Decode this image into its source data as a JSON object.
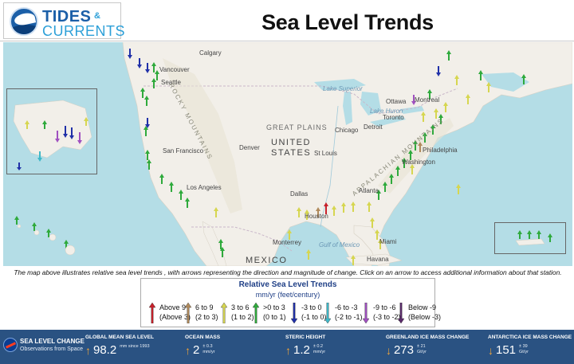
{
  "header": {
    "brand_line1": "TIDES",
    "brand_amp": "&",
    "brand_line2": "CURRENTS",
    "seal_text": "NOAA",
    "title": "Sea Level Trends"
  },
  "map": {
    "labels": {
      "calgary": "Calgary",
      "vancouver": "Vancouver",
      "seattle": "Seattle",
      "san_francisco": "San Francisco",
      "los_angeles": "Los Angeles",
      "denver": "Denver",
      "dallas": "Dallas",
      "houston": "Houston",
      "monterrey": "Monterrey",
      "st_louis": "St Louis",
      "chicago": "Chicago",
      "detroit": "Detroit",
      "toronto": "Toronto",
      "ottawa": "Ottawa",
      "montreal": "Montreal",
      "philadelphia": "Philadelphia",
      "washington": "Washington",
      "atlanta": "Atlanta",
      "miami": "Miami",
      "havana": "Havana",
      "great_plains": "GREAT PLAINS",
      "united_states_1": "UNITED",
      "united_states_2": "STATES",
      "mexico": "MEXICO",
      "lake_superior": "Lake Superior",
      "lake_huron": "Lake Huron",
      "gulf_of_mexico": "Gulf of Mexico",
      "rocky_mountains": "ROCKY MOUNTAINS",
      "appalachian": "APPALACHIAN MOUNTAINS"
    },
    "colors": {
      "water": "#b4dde6",
      "land": "#f2efe9",
      "land_canada": "#f4f2ec",
      "border": "#c9b7c9"
    }
  },
  "caption": "The map above illustrates relative sea level trends , with arrows representing the direction and magnitude of change. Click on an arrow to access additional information about that station.",
  "legend": {
    "title": "Relative Sea Level Trends",
    "units": "mm/yr (feet/century)",
    "items": [
      {
        "line1": "Above 9",
        "line2": "(Above 3)",
        "color": "#c8202a",
        "direction": "up"
      },
      {
        "line1": "6 to 9",
        "line2": "(2 to 3)",
        "color": "#b08a5c",
        "direction": "up"
      },
      {
        "line1": "3 to 6",
        "line2": "(1 to 2)",
        "color": "#d6d650",
        "direction": "up"
      },
      {
        "line1": ">0 to 3",
        "line2": "(0 to 1)",
        "color": "#2faa3c",
        "direction": "up"
      },
      {
        "line1": "-3 to 0",
        "line2": "(-1 to 0)",
        "color": "#2030a8",
        "direction": "down"
      },
      {
        "line1": "-6 to -3",
        "line2": "(-2 to -1)",
        "color": "#3fb8c8",
        "direction": "down"
      },
      {
        "line1": "-9 to -6",
        "line2": "(-3 to -2)",
        "color": "#a050c0",
        "direction": "down"
      },
      {
        "line1": "Below -9",
        "line2": "(Below -3)",
        "color": "#5a2a6a",
        "direction": "down"
      }
    ]
  },
  "banner": {
    "heading": "SEA LEVEL CHANGE",
    "subheading": "Observations from Space",
    "metrics": [
      {
        "label": "GLOBAL MEAN SEA LEVEL",
        "arrow": "↑",
        "value": "98.2",
        "unit1": "mm since 1993",
        "unit2": ""
      },
      {
        "label": "OCEAN MASS",
        "arrow": "↑",
        "value": "2",
        "unit1": "± 0.3",
        "unit2": "mm/yr"
      },
      {
        "label": "STERIC HEIGHT",
        "arrow": "↑",
        "value": "1.2",
        "unit1": "± 0.2",
        "unit2": "mm/yr"
      },
      {
        "label": "GREENLAND ICE MASS CHANGE",
        "arrow": "↓",
        "value": "273",
        "unit1": "± 21",
        "unit2": "Gt/yr"
      },
      {
        "label": "ANTARCTICA ICE MASS CHANGE",
        "arrow": "↓",
        "value": "151",
        "unit1": "± 39",
        "unit2": "Gt/yr"
      }
    ]
  }
}
